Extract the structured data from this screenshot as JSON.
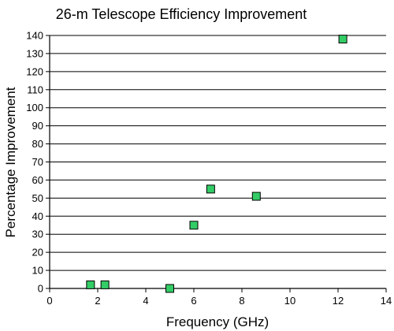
{
  "chart_data": {
    "type": "scatter",
    "title": "26-m Telescope Efficiency Improvement",
    "xlabel": "Frequency (GHz)",
    "ylabel": "Percentage Improvement",
    "xlim": [
      0,
      14
    ],
    "ylim": [
      0,
      140
    ],
    "xticks": [
      0,
      2,
      4,
      6,
      8,
      10,
      12,
      14
    ],
    "yticks": [
      0,
      10,
      20,
      30,
      40,
      50,
      60,
      70,
      80,
      90,
      100,
      110,
      120,
      130,
      140
    ],
    "grid": "horizontal",
    "marker": "square",
    "marker_color": "#33cc66",
    "points": [
      {
        "x": 1.7,
        "y": 2
      },
      {
        "x": 2.3,
        "y": 2
      },
      {
        "x": 5.0,
        "y": 0
      },
      {
        "x": 6.0,
        "y": 35
      },
      {
        "x": 6.7,
        "y": 55
      },
      {
        "x": 8.6,
        "y": 51
      },
      {
        "x": 12.2,
        "y": 138
      }
    ]
  }
}
